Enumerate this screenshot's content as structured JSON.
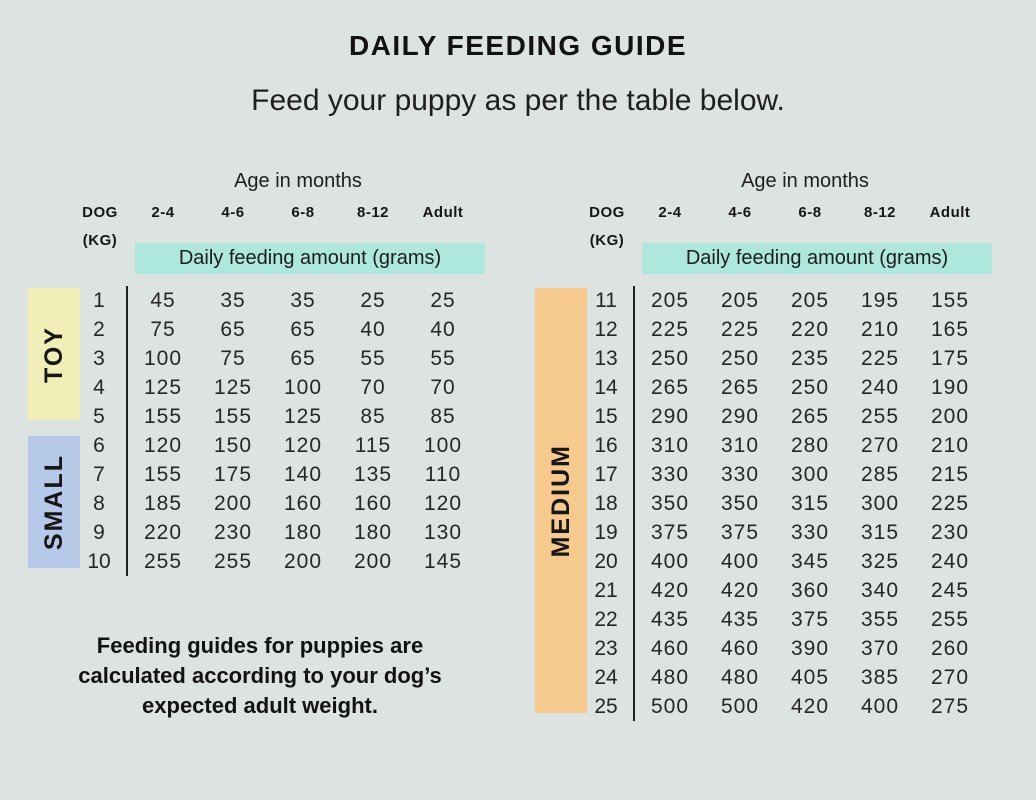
{
  "title": "DAILY FEEDING GUIDE",
  "subtitle": "Feed your puppy as per the table below.",
  "footer_note": "Feeding guides for puppies are calculated according to your dog’s expected adult weight.",
  "colors": {
    "background": "#dce3e0",
    "teal_highlight": "#aee8dc",
    "toy_yellow": "#f0edb6",
    "small_blue": "#b7c9e9",
    "medium_orange": "#f6c98e",
    "text": "#1a1a1a"
  },
  "tables": [
    {
      "age_header": "Age in months",
      "dog_label": "DOG",
      "kg_label": "(KG)",
      "band_label": "Daily feeding amount (grams)",
      "age_columns": [
        "2-4",
        "4-6",
        "6-8",
        "8-12",
        "Adult"
      ],
      "size_groups": [
        {
          "label": "TOY"
        },
        {
          "label": "SMALL"
        }
      ],
      "rows": [
        {
          "kg": "1",
          "values": [
            "45",
            "35",
            "35",
            "25",
            "25"
          ]
        },
        {
          "kg": "2",
          "values": [
            "75",
            "65",
            "65",
            "40",
            "40"
          ]
        },
        {
          "kg": "3",
          "values": [
            "100",
            "75",
            "65",
            "55",
            "55"
          ]
        },
        {
          "kg": "4",
          "values": [
            "125",
            "125",
            "100",
            "70",
            "70"
          ]
        },
        {
          "kg": "5",
          "values": [
            "155",
            "155",
            "125",
            "85",
            "85"
          ]
        },
        {
          "kg": "6",
          "values": [
            "120",
            "150",
            "120",
            "115",
            "100"
          ]
        },
        {
          "kg": "7",
          "values": [
            "155",
            "175",
            "140",
            "135",
            "110"
          ]
        },
        {
          "kg": "8",
          "values": [
            "185",
            "200",
            "160",
            "160",
            "120"
          ]
        },
        {
          "kg": "9",
          "values": [
            "220",
            "230",
            "180",
            "180",
            "130"
          ]
        },
        {
          "kg": "10",
          "values": [
            "255",
            "255",
            "200",
            "200",
            "145"
          ]
        }
      ]
    },
    {
      "age_header": "Age in months",
      "dog_label": "DOG",
      "kg_label": "(KG)",
      "band_label": "Daily feeding amount (grams)",
      "age_columns": [
        "2-4",
        "4-6",
        "6-8",
        "8-12",
        "Adult"
      ],
      "size_groups": [
        {
          "label": "MEDIUM"
        }
      ],
      "rows": [
        {
          "kg": "11",
          "values": [
            "205",
            "205",
            "205",
            "195",
            "155"
          ]
        },
        {
          "kg": "12",
          "values": [
            "225",
            "225",
            "220",
            "210",
            "165"
          ]
        },
        {
          "kg": "13",
          "values": [
            "250",
            "250",
            "235",
            "225",
            "175"
          ]
        },
        {
          "kg": "14",
          "values": [
            "265",
            "265",
            "250",
            "240",
            "190"
          ]
        },
        {
          "kg": "15",
          "values": [
            "290",
            "290",
            "265",
            "255",
            "200"
          ]
        },
        {
          "kg": "16",
          "values": [
            "310",
            "310",
            "280",
            "270",
            "210"
          ]
        },
        {
          "kg": "17",
          "values": [
            "330",
            "330",
            "300",
            "285",
            "215"
          ]
        },
        {
          "kg": "18",
          "values": [
            "350",
            "350",
            "315",
            "300",
            "225"
          ]
        },
        {
          "kg": "19",
          "values": [
            "375",
            "375",
            "330",
            "315",
            "230"
          ]
        },
        {
          "kg": "20",
          "values": [
            "400",
            "400",
            "345",
            "325",
            "240"
          ]
        },
        {
          "kg": "21",
          "values": [
            "420",
            "420",
            "360",
            "340",
            "245"
          ]
        },
        {
          "kg": "22",
          "values": [
            "435",
            "435",
            "375",
            "355",
            "255"
          ]
        },
        {
          "kg": "23",
          "values": [
            "460",
            "460",
            "390",
            "370",
            "260"
          ]
        },
        {
          "kg": "24",
          "values": [
            "480",
            "480",
            "405",
            "385",
            "270"
          ]
        },
        {
          "kg": "25",
          "values": [
            "500",
            "500",
            "420",
            "400",
            "275"
          ]
        }
      ]
    }
  ]
}
